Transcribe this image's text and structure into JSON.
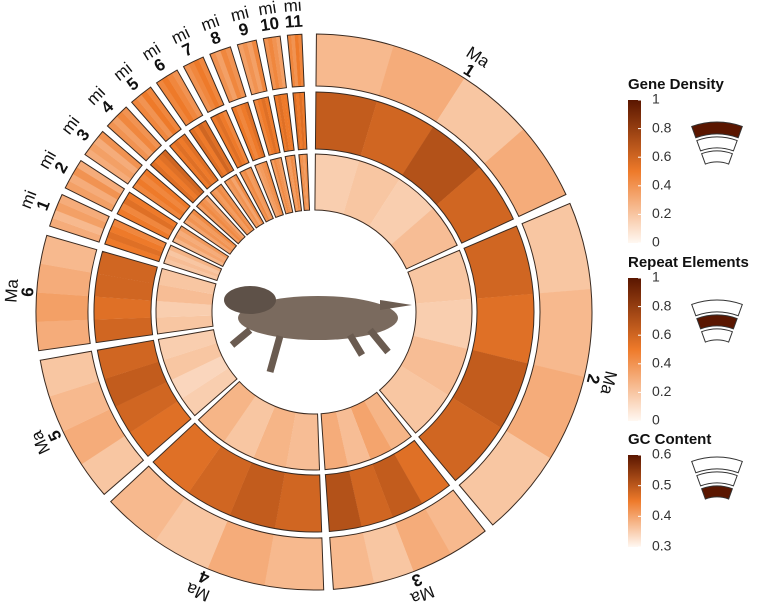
{
  "chart_data": {
    "type": "circos",
    "chromosomes": [
      {
        "group": "Ma",
        "number": "1"
      },
      {
        "group": "Ma",
        "number": "2"
      },
      {
        "group": "Ma",
        "number": "3"
      },
      {
        "group": "Ma",
        "number": "4"
      },
      {
        "group": "Ma",
        "number": "5"
      },
      {
        "group": "Ma",
        "number": "6"
      },
      {
        "group": "mi",
        "number": "1"
      },
      {
        "group": "mi",
        "number": "2"
      },
      {
        "group": "mi",
        "number": "3"
      },
      {
        "group": "mi",
        "number": "4"
      },
      {
        "group": "mi",
        "number": "5"
      },
      {
        "group": "mi",
        "number": "6"
      },
      {
        "group": "mi",
        "number": "7"
      },
      {
        "group": "mi",
        "number": "8"
      },
      {
        "group": "mi",
        "number": "9"
      },
      {
        "group": "mi",
        "number": "10"
      },
      {
        "group": "mi",
        "number": "11"
      }
    ],
    "tracks": [
      {
        "name": "Gene Density",
        "lim": [
          0,
          1
        ],
        "ticks": [
          0,
          0.2,
          0.4,
          0.6,
          0.8,
          1
        ],
        "values": [
          [
            0.25,
            0.3,
            0.2,
            0.3
          ],
          [
            0.2,
            0.25,
            0.3,
            0.2
          ],
          [
            0.25,
            0.3,
            0.2,
            0.25
          ],
          [
            0.25,
            0.3,
            0.2,
            0.25
          ],
          [
            0.2,
            0.3,
            0.25,
            0.2
          ],
          [
            0.3,
            0.35,
            0.3,
            0.25
          ],
          [
            0.3,
            0.25,
            0.35,
            0.3
          ],
          [
            0.35,
            0.3,
            0.4,
            0.3
          ],
          [
            0.3,
            0.35,
            0.3,
            0.4
          ],
          [
            0.4,
            0.35,
            0.45,
            0.4
          ],
          [
            0.45,
            0.4,
            0.5,
            0.45
          ],
          [
            0.45,
            0.5,
            0.45,
            0.4
          ],
          [
            0.4,
            0.45,
            0.5,
            0.45
          ],
          [
            0.4,
            0.35,
            0.45,
            0.4
          ],
          [
            0.35,
            0.4,
            0.35,
            0.45
          ],
          [
            0.4,
            0.45,
            0.4,
            0.35
          ],
          [
            0.45,
            0.4,
            0.5,
            0.45
          ]
        ]
      },
      {
        "name": "Repeat Elements",
        "lim": [
          0,
          1
        ],
        "ticks": [
          0,
          0.2,
          0.4,
          0.6,
          0.8,
          1
        ],
        "values": [
          [
            0.65,
            0.6,
            0.7,
            0.6
          ],
          [
            0.6,
            0.55,
            0.65,
            0.6
          ],
          [
            0.55,
            0.65,
            0.6,
            0.7
          ],
          [
            0.6,
            0.65,
            0.6,
            0.55
          ],
          [
            0.55,
            0.6,
            0.65,
            0.6
          ],
          [
            0.6,
            0.55,
            0.6,
            0.6
          ],
          [
            0.5,
            0.55,
            0.5,
            0.45
          ],
          [
            0.5,
            0.45,
            0.55,
            0.5
          ],
          [
            0.45,
            0.5,
            0.45,
            0.5
          ],
          [
            0.55,
            0.5,
            0.55,
            0.6
          ],
          [
            0.5,
            0.55,
            0.5,
            0.55
          ],
          [
            0.55,
            0.5,
            0.6,
            0.55
          ],
          [
            0.5,
            0.55,
            0.5,
            0.45
          ],
          [
            0.5,
            0.45,
            0.5,
            0.55
          ],
          [
            0.45,
            0.5,
            0.55,
            0.5
          ],
          [
            0.5,
            0.55,
            0.5,
            0.5
          ],
          [
            0.55,
            0.5,
            0.55,
            0.5
          ]
        ]
      },
      {
        "name": "GC Content",
        "lim": [
          0.3,
          0.6
        ],
        "ticks": [
          0.3,
          0.4,
          0.5,
          0.6
        ],
        "values": [
          [
            0.35,
            0.36,
            0.35,
            0.37
          ],
          [
            0.36,
            0.35,
            0.37,
            0.36
          ],
          [
            0.38,
            0.4,
            0.37,
            0.39
          ],
          [
            0.37,
            0.38,
            0.36,
            0.38
          ],
          [
            0.35,
            0.34,
            0.36,
            0.35
          ],
          [
            0.36,
            0.35,
            0.37,
            0.36
          ],
          [
            0.36,
            0.37,
            0.36,
            0.38
          ],
          [
            0.38,
            0.4,
            0.39,
            0.41
          ],
          [
            0.4,
            0.42,
            0.41,
            0.43
          ],
          [
            0.41,
            0.43,
            0.42,
            0.4
          ],
          [
            0.42,
            0.41,
            0.43,
            0.42
          ],
          [
            0.41,
            0.42,
            0.4,
            0.43
          ],
          [
            0.42,
            0.43,
            0.41,
            0.42
          ],
          [
            0.4,
            0.41,
            0.42,
            0.43
          ],
          [
            0.41,
            0.43,
            0.42,
            0.41
          ],
          [
            0.42,
            0.41,
            0.43,
            0.42
          ],
          [
            0.43,
            0.42,
            0.41,
            0.43
          ]
        ]
      }
    ]
  }
}
